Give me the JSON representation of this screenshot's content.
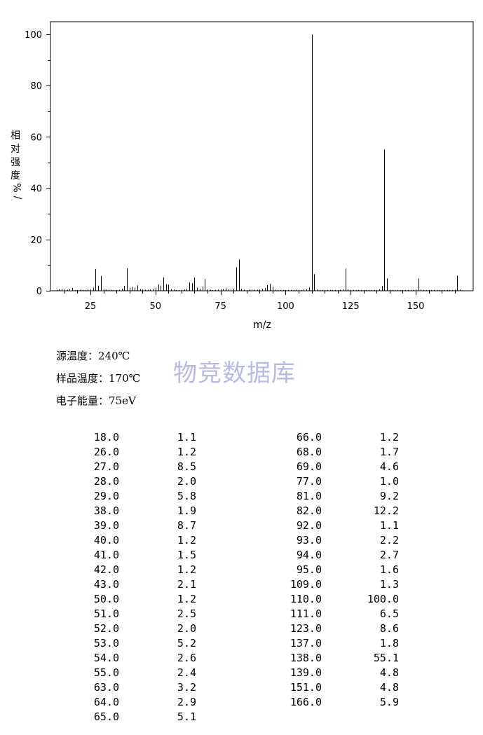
{
  "chart_data": {
    "type": "bar",
    "xlabel": "m/z",
    "ylabel": "相对强度 %/",
    "xlim": [
      10,
      170
    ],
    "ylim": [
      0,
      105
    ],
    "x_ticks": [
      25,
      50,
      75,
      100,
      125,
      150
    ],
    "y_ticks": [
      0,
      20,
      40,
      60,
      80,
      100
    ],
    "grid": false,
    "peaks": [
      {
        "mz": 12,
        "intensity": 0.4
      },
      {
        "mz": 13,
        "intensity": 0.6
      },
      {
        "mz": 14,
        "intensity": 0.8
      },
      {
        "mz": 15,
        "intensity": 0.5
      },
      {
        "mz": 16,
        "intensity": 0.4
      },
      {
        "mz": 17,
        "intensity": 0.6
      },
      {
        "mz": 18,
        "intensity": 1.1
      },
      {
        "mz": 19,
        "intensity": 0.3
      },
      {
        "mz": 20,
        "intensity": 0.3
      },
      {
        "mz": 21,
        "intensity": 0.3
      },
      {
        "mz": 22,
        "intensity": 0.4
      },
      {
        "mz": 23,
        "intensity": 0.3
      },
      {
        "mz": 24,
        "intensity": 0.5
      },
      {
        "mz": 25,
        "intensity": 0.6
      },
      {
        "mz": 26,
        "intensity": 1.2
      },
      {
        "mz": 27,
        "intensity": 8.5
      },
      {
        "mz": 28,
        "intensity": 2.0
      },
      {
        "mz": 29,
        "intensity": 5.8
      },
      {
        "mz": 30,
        "intensity": 0.5
      },
      {
        "mz": 31,
        "intensity": 0.5
      },
      {
        "mz": 32,
        "intensity": 0.4
      },
      {
        "mz": 33,
        "intensity": 0.3
      },
      {
        "mz": 34,
        "intensity": 0.3
      },
      {
        "mz": 35,
        "intensity": 0.3
      },
      {
        "mz": 36,
        "intensity": 0.4
      },
      {
        "mz": 37,
        "intensity": 0.8
      },
      {
        "mz": 38,
        "intensity": 1.9
      },
      {
        "mz": 39,
        "intensity": 8.7
      },
      {
        "mz": 40,
        "intensity": 1.2
      },
      {
        "mz": 41,
        "intensity": 1.5
      },
      {
        "mz": 42,
        "intensity": 1.2
      },
      {
        "mz": 43,
        "intensity": 2.1
      },
      {
        "mz": 44,
        "intensity": 0.6
      },
      {
        "mz": 45,
        "intensity": 0.5
      },
      {
        "mz": 46,
        "intensity": 0.4
      },
      {
        "mz": 47,
        "intensity": 0.4
      },
      {
        "mz": 48,
        "intensity": 0.5
      },
      {
        "mz": 49,
        "intensity": 0.8
      },
      {
        "mz": 50,
        "intensity": 1.2
      },
      {
        "mz": 51,
        "intensity": 2.5
      },
      {
        "mz": 52,
        "intensity": 2.0
      },
      {
        "mz": 53,
        "intensity": 5.2
      },
      {
        "mz": 54,
        "intensity": 2.6
      },
      {
        "mz": 55,
        "intensity": 2.4
      },
      {
        "mz": 56,
        "intensity": 0.6
      },
      {
        "mz": 57,
        "intensity": 0.5
      },
      {
        "mz": 58,
        "intensity": 0.3
      },
      {
        "mz": 59,
        "intensity": 0.3
      },
      {
        "mz": 60,
        "intensity": 0.4
      },
      {
        "mz": 61,
        "intensity": 0.5
      },
      {
        "mz": 62,
        "intensity": 0.8
      },
      {
        "mz": 63,
        "intensity": 3.2
      },
      {
        "mz": 64,
        "intensity": 2.9
      },
      {
        "mz": 65,
        "intensity": 5.1
      },
      {
        "mz": 66,
        "intensity": 1.2
      },
      {
        "mz": 67,
        "intensity": 0.8
      },
      {
        "mz": 68,
        "intensity": 1.7
      },
      {
        "mz": 69,
        "intensity": 4.6
      },
      {
        "mz": 70,
        "intensity": 0.5
      },
      {
        "mz": 71,
        "intensity": 0.4
      },
      {
        "mz": 72,
        "intensity": 0.3
      },
      {
        "mz": 73,
        "intensity": 0.3
      },
      {
        "mz": 74,
        "intensity": 0.5
      },
      {
        "mz": 75,
        "intensity": 0.6
      },
      {
        "mz": 76,
        "intensity": 0.7
      },
      {
        "mz": 77,
        "intensity": 1.0
      },
      {
        "mz": 78,
        "intensity": 0.6
      },
      {
        "mz": 79,
        "intensity": 0.5
      },
      {
        "mz": 80,
        "intensity": 0.8
      },
      {
        "mz": 81,
        "intensity": 9.2
      },
      {
        "mz": 82,
        "intensity": 12.2
      },
      {
        "mz": 83,
        "intensity": 0.8
      },
      {
        "mz": 84,
        "intensity": 0.4
      },
      {
        "mz": 85,
        "intensity": 0.3
      },
      {
        "mz": 86,
        "intensity": 0.4
      },
      {
        "mz": 87,
        "intensity": 0.5
      },
      {
        "mz": 88,
        "intensity": 0.4
      },
      {
        "mz": 89,
        "intensity": 0.4
      },
      {
        "mz": 90,
        "intensity": 0.5
      },
      {
        "mz": 91,
        "intensity": 0.8
      },
      {
        "mz": 92,
        "intensity": 1.1
      },
      {
        "mz": 93,
        "intensity": 2.2
      },
      {
        "mz": 94,
        "intensity": 2.7
      },
      {
        "mz": 95,
        "intensity": 1.6
      },
      {
        "mz": 96,
        "intensity": 0.4
      },
      {
        "mz": 97,
        "intensity": 0.3
      },
      {
        "mz": 98,
        "intensity": 0.3
      },
      {
        "mz": 99,
        "intensity": 0.3
      },
      {
        "mz": 100,
        "intensity": 0.3
      },
      {
        "mz": 101,
        "intensity": 0.3
      },
      {
        "mz": 102,
        "intensity": 0.3
      },
      {
        "mz": 103,
        "intensity": 0.3
      },
      {
        "mz": 104,
        "intensity": 0.4
      },
      {
        "mz": 105,
        "intensity": 0.4
      },
      {
        "mz": 106,
        "intensity": 0.3
      },
      {
        "mz": 107,
        "intensity": 0.5
      },
      {
        "mz": 108,
        "intensity": 0.6
      },
      {
        "mz": 109,
        "intensity": 1.3
      },
      {
        "mz": 110,
        "intensity": 100.0
      },
      {
        "mz": 111,
        "intensity": 6.5
      },
      {
        "mz": 112,
        "intensity": 0.5
      },
      {
        "mz": 113,
        "intensity": 0.3
      },
      {
        "mz": 114,
        "intensity": 0.3
      },
      {
        "mz": 115,
        "intensity": 0.3
      },
      {
        "mz": 116,
        "intensity": 0.3
      },
      {
        "mz": 117,
        "intensity": 0.3
      },
      {
        "mz": 118,
        "intensity": 0.3
      },
      {
        "mz": 119,
        "intensity": 0.3
      },
      {
        "mz": 120,
        "intensity": 0.3
      },
      {
        "mz": 121,
        "intensity": 0.4
      },
      {
        "mz": 122,
        "intensity": 0.6
      },
      {
        "mz": 123,
        "intensity": 8.6
      },
      {
        "mz": 124,
        "intensity": 0.6
      },
      {
        "mz": 125,
        "intensity": 0.3
      },
      {
        "mz": 126,
        "intensity": 0.3
      },
      {
        "mz": 127,
        "intensity": 0.3
      },
      {
        "mz": 128,
        "intensity": 0.3
      },
      {
        "mz": 129,
        "intensity": 0.3
      },
      {
        "mz": 130,
        "intensity": 0.3
      },
      {
        "mz": 131,
        "intensity": 0.3
      },
      {
        "mz": 132,
        "intensity": 0.3
      },
      {
        "mz": 133,
        "intensity": 0.3
      },
      {
        "mz": 134,
        "intensity": 0.3
      },
      {
        "mz": 135,
        "intensity": 0.3
      },
      {
        "mz": 136,
        "intensity": 0.6
      },
      {
        "mz": 137,
        "intensity": 1.8
      },
      {
        "mz": 138,
        "intensity": 55.1
      },
      {
        "mz": 139,
        "intensity": 4.8
      },
      {
        "mz": 140,
        "intensity": 0.4
      },
      {
        "mz": 141,
        "intensity": 0.3
      },
      {
        "mz": 142,
        "intensity": 0.3
      },
      {
        "mz": 143,
        "intensity": 0.3
      },
      {
        "mz": 144,
        "intensity": 0.3
      },
      {
        "mz": 145,
        "intensity": 0.3
      },
      {
        "mz": 146,
        "intensity": 0.3
      },
      {
        "mz": 147,
        "intensity": 0.3
      },
      {
        "mz": 148,
        "intensity": 0.3
      },
      {
        "mz": 149,
        "intensity": 0.3
      },
      {
        "mz": 150,
        "intensity": 0.5
      },
      {
        "mz": 151,
        "intensity": 4.8
      },
      {
        "mz": 152,
        "intensity": 0.5
      },
      {
        "mz": 153,
        "intensity": 0.3
      },
      {
        "mz": 154,
        "intensity": 0.3
      },
      {
        "mz": 155,
        "intensity": 0.3
      },
      {
        "mz": 156,
        "intensity": 0.3
      },
      {
        "mz": 157,
        "intensity": 0.3
      },
      {
        "mz": 158,
        "intensity": 0.3
      },
      {
        "mz": 159,
        "intensity": 0.3
      },
      {
        "mz": 160,
        "intensity": 0.3
      },
      {
        "mz": 161,
        "intensity": 0.3
      },
      {
        "mz": 162,
        "intensity": 0.3
      },
      {
        "mz": 163,
        "intensity": 0.3
      },
      {
        "mz": 164,
        "intensity": 0.3
      },
      {
        "mz": 165,
        "intensity": 0.4
      },
      {
        "mz": 166,
        "intensity": 5.9
      },
      {
        "mz": 167,
        "intensity": 0.5
      }
    ]
  },
  "conditions": {
    "source_temp": "源温度：240℃",
    "sample_temp": "样品温度：170℃",
    "electron_energy": "电子能量：75eV"
  },
  "watermark": "物竞数据库",
  "peak_table": {
    "left": [
      [
        "18.0",
        "1.1"
      ],
      [
        "26.0",
        "1.2"
      ],
      [
        "27.0",
        "8.5"
      ],
      [
        "28.0",
        "2.0"
      ],
      [
        "29.0",
        "5.8"
      ],
      [
        "38.0",
        "1.9"
      ],
      [
        "39.0",
        "8.7"
      ],
      [
        "40.0",
        "1.2"
      ],
      [
        "41.0",
        "1.5"
      ],
      [
        "42.0",
        "1.2"
      ],
      [
        "43.0",
        "2.1"
      ],
      [
        "50.0",
        "1.2"
      ],
      [
        "51.0",
        "2.5"
      ],
      [
        "52.0",
        "2.0"
      ],
      [
        "53.0",
        "5.2"
      ],
      [
        "54.0",
        "2.6"
      ],
      [
        "55.0",
        "2.4"
      ],
      [
        "63.0",
        "3.2"
      ],
      [
        "64.0",
        "2.9"
      ],
      [
        "65.0",
        "5.1"
      ]
    ],
    "right": [
      [
        "66.0",
        "1.2"
      ],
      [
        "68.0",
        "1.7"
      ],
      [
        "69.0",
        "4.6"
      ],
      [
        "77.0",
        "1.0"
      ],
      [
        "81.0",
        "9.2"
      ],
      [
        "82.0",
        "12.2"
      ],
      [
        "92.0",
        "1.1"
      ],
      [
        "93.0",
        "2.2"
      ],
      [
        "94.0",
        "2.7"
      ],
      [
        "95.0",
        "1.6"
      ],
      [
        "109.0",
        "1.3"
      ],
      [
        "110.0",
        "100.0"
      ],
      [
        "111.0",
        "6.5"
      ],
      [
        "123.0",
        "8.6"
      ],
      [
        "137.0",
        "1.8"
      ],
      [
        "138.0",
        "55.1"
      ],
      [
        "139.0",
        "4.8"
      ],
      [
        "151.0",
        "4.8"
      ],
      [
        "166.0",
        "5.9"
      ]
    ]
  }
}
